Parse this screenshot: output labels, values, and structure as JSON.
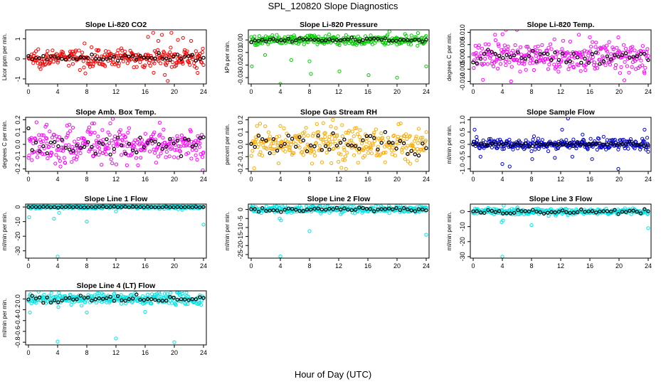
{
  "figure": {
    "title": "SPL_120820  Slope Diagnostics",
    "xlabel": "Hour of Day (UTC)"
  },
  "chart_data": [
    {
      "type": "scatter",
      "title": "Slope Li-820 CO2",
      "ylabel": "Licor ppm per min.",
      "color": "#ff0000",
      "xlim": [
        0,
        24
      ],
      "ylim": [
        -1.25,
        1.45
      ],
      "xticks": [
        0,
        4,
        8,
        12,
        16,
        20,
        24
      ],
      "yticks": [
        -1,
        0,
        1
      ],
      "noise": 0.22,
      "black_noise": 0.08,
      "series_center": 0.05,
      "outliers": [
        [
          16.4,
          1.1
        ],
        [
          17.1,
          1.3
        ],
        [
          17.8,
          0.9
        ],
        [
          18.3,
          1.2
        ],
        [
          18.7,
          -0.8
        ],
        [
          19.6,
          1.3
        ],
        [
          20.5,
          0.95
        ],
        [
          21.2,
          1.05
        ],
        [
          22.3,
          0.9
        ],
        [
          23.2,
          -0.7
        ],
        [
          19.1,
          -1.1
        ]
      ]
    },
    {
      "type": "scatter",
      "title": "Slope Li-820 Pressure",
      "ylabel": "kPa per min.",
      "color": "#00cc00",
      "xlim": [
        0,
        24
      ],
      "ylim": [
        -0.035,
        0.008
      ],
      "xticks": [
        0,
        4,
        8,
        12,
        16,
        20,
        24
      ],
      "yticks": [
        -0.03,
        -0.02,
        -0.01,
        0.0
      ],
      "noise": 0.002,
      "black_noise": 0.0008,
      "series_center": 0.0,
      "outliers": [
        [
          0.1,
          -0.021
        ],
        [
          4.0,
          -0.035
        ],
        [
          8.0,
          -0.017
        ],
        [
          8.2,
          -0.027
        ],
        [
          12.1,
          -0.025
        ],
        [
          16.1,
          -0.028
        ],
        [
          20.0,
          -0.03
        ],
        [
          24.0,
          -0.021
        ],
        [
          5.5,
          -0.016
        ],
        [
          1.9,
          -0.012
        ]
      ]
    },
    {
      "type": "scatter",
      "title": "Slope Li-820 Temp.",
      "ylabel": "degrees C per min.",
      "color": "#ff00ff",
      "xlim": [
        0,
        24
      ],
      "ylim": [
        -0.011,
        0.011
      ],
      "xticks": [
        0,
        4,
        8,
        12,
        16,
        20,
        24
      ],
      "yticks": [
        -0.01,
        -0.005,
        0.0,
        0.005,
        0.01
      ],
      "noise": 0.003,
      "black_noise": 0.0015,
      "series_center": 0.0,
      "outliers": [
        [
          3.0,
          0.009
        ],
        [
          4.5,
          0.011
        ],
        [
          6.0,
          0.011
        ],
        [
          5.2,
          -0.01
        ],
        [
          14.5,
          0.009
        ],
        [
          16.0,
          0.008
        ]
      ]
    },
    {
      "type": "scatter",
      "title": "Slope Amb. Box Temp.",
      "ylabel": "degrees C per min.",
      "color": "#ff00ff",
      "xlim": [
        0,
        24
      ],
      "ylim": [
        -0.22,
        0.22
      ],
      "xticks": [
        0,
        4,
        8,
        12,
        16,
        20,
        24
      ],
      "yticks": [
        -0.2,
        -0.1,
        0.0,
        0.1,
        0.2
      ],
      "noise": 0.07,
      "black_noise": 0.05,
      "series_center": 0.0,
      "outliers": [
        [
          23.9,
          -0.21
        ],
        [
          2.5,
          0.16
        ],
        [
          9.0,
          0.17
        ],
        [
          13.5,
          -0.17
        ]
      ]
    },
    {
      "type": "scatter",
      "title": "Slope Gas Stream RH",
      "ylabel": "percent per min.",
      "color": "#ffaa00",
      "xlim": [
        0,
        24
      ],
      "ylim": [
        -0.22,
        0.22
      ],
      "xticks": [
        0,
        4,
        8,
        12,
        16,
        20,
        24
      ],
      "yticks": [
        -0.2,
        -0.1,
        0.0,
        0.1,
        0.2
      ],
      "noise": 0.07,
      "black_noise": 0.05,
      "series_center": 0.0,
      "outliers": [
        [
          11.2,
          0.2
        ],
        [
          13.0,
          -0.2
        ],
        [
          4.0,
          0.15
        ],
        [
          20.5,
          0.17
        ]
      ]
    },
    {
      "type": "scatter",
      "title": "Slope Sample Flow",
      "ylabel": "ml/min per min.",
      "color": "#0000cc",
      "xlim": [
        0,
        24
      ],
      "ylim": [
        -1.1,
        1.1
      ],
      "xticks": [
        0,
        4,
        8,
        12,
        16,
        20,
        24
      ],
      "yticks": [
        -1.0,
        -0.5,
        0.0,
        0.5,
        1.0
      ],
      "noise": 0.12,
      "black_noise": 0.04,
      "series_center": 0.0,
      "outliers": [
        [
          0.2,
          0.6
        ],
        [
          1.0,
          -0.5
        ],
        [
          4.0,
          -0.8
        ],
        [
          5.0,
          -0.9
        ],
        [
          8.1,
          -0.6
        ],
        [
          12.2,
          0.6
        ],
        [
          13.0,
          1.05
        ],
        [
          13.6,
          -0.5
        ],
        [
          15.0,
          0.4
        ],
        [
          16.3,
          -0.6
        ],
        [
          19.9,
          -1.0
        ],
        [
          23.5,
          0.6
        ],
        [
          24.0,
          -0.3
        ],
        [
          11.2,
          -0.55
        ]
      ]
    },
    {
      "type": "scatter",
      "title": "Slope Line 1 Flow",
      "ylabel": "ml/min per min.",
      "color": "#00e5e5",
      "xlim": [
        0,
        24
      ],
      "ylim": [
        -35,
        2
      ],
      "xticks": [
        0,
        4,
        8,
        12,
        16,
        20,
        24
      ],
      "yticks": [
        -30,
        -20,
        -10,
        0
      ],
      "noise": 0.5,
      "black_noise": 0.15,
      "series_center": 0.0,
      "outliers": [
        [
          0.1,
          -7
        ],
        [
          4.0,
          -34
        ],
        [
          3.5,
          -8
        ],
        [
          8.0,
          -10
        ],
        [
          24.0,
          -12
        ],
        [
          12.0,
          -3
        ],
        [
          4.2,
          -4
        ]
      ]
    },
    {
      "type": "scatter",
      "title": "Slope Line 2 Flow",
      "ylabel": "ml/min per min.",
      "color": "#00e5e5",
      "xlim": [
        0,
        24
      ],
      "ylim": [
        -27,
        3
      ],
      "xticks": [
        0,
        4,
        8,
        12,
        16,
        20,
        24
      ],
      "yticks": [
        -25,
        -20,
        -15,
        -10,
        -5,
        0
      ],
      "noise": 1.0,
      "black_noise": 0.6,
      "series_center": 0.0,
      "outliers": [
        [
          4.0,
          -26
        ],
        [
          4.1,
          -6
        ],
        [
          8.0,
          -12
        ],
        [
          24.0,
          -14
        ],
        [
          3.9,
          -5
        ]
      ]
    },
    {
      "type": "scatter",
      "title": "Slope Line 3 Flow",
      "ylabel": "ml/min per min.",
      "color": "#00e5e5",
      "xlim": [
        0,
        24
      ],
      "ylim": [
        -31,
        5
      ],
      "xticks": [
        0,
        4,
        8,
        12,
        16,
        20,
        24
      ],
      "yticks": [
        -30,
        -20,
        -10,
        0
      ],
      "noise": 1.0,
      "black_noise": 0.6,
      "series_center": 0.0,
      "outliers": [
        [
          4.0,
          -30
        ],
        [
          8.0,
          -9
        ],
        [
          24.0,
          -11
        ],
        [
          4.1,
          -6
        ],
        [
          3.9,
          -7
        ],
        [
          4.2,
          4
        ]
      ]
    },
    {
      "type": "scatter",
      "title": "Slope Line 4 (LT) Flow",
      "ylabel": "ml/min per min.",
      "color": "#00e5e5",
      "xlim": [
        0,
        24
      ],
      "ylim": [
        -0.85,
        0.15
      ],
      "xticks": [
        0,
        4,
        8,
        12,
        16,
        20,
        24
      ],
      "yticks": [
        -0.8,
        -0.6,
        -0.4,
        -0.2,
        0.0
      ],
      "noise": 0.05,
      "black_noise": 0.03,
      "series_center": 0.0,
      "outliers": [
        [
          4.0,
          -0.79
        ],
        [
          12.0,
          -0.73
        ],
        [
          20.0,
          -0.8
        ],
        [
          0.2,
          -0.25
        ],
        [
          8.0,
          -0.25
        ],
        [
          16.0,
          -0.24
        ],
        [
          4.1,
          -0.15
        ]
      ]
    }
  ]
}
